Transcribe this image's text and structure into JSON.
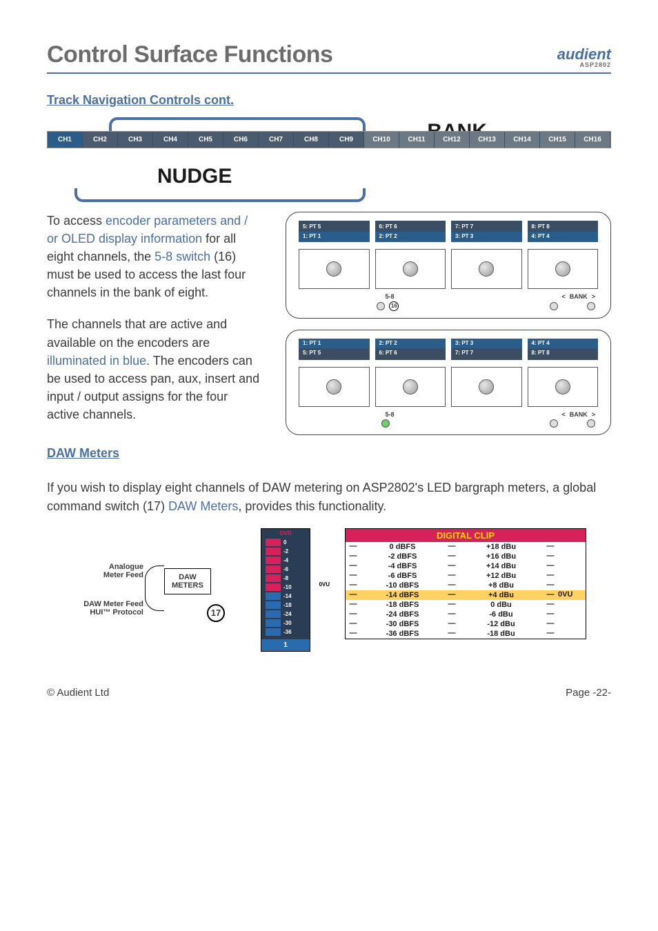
{
  "header": {
    "title": "Control Surface Functions",
    "brand": "audient",
    "model": "ASP2802"
  },
  "section1": "Track Navigation Controls cont.",
  "bank_label": "BANK",
  "nudge_label": "NUDGE",
  "channels": [
    "CH1",
    "CH2",
    "CH3",
    "CH4",
    "CH5",
    "CH6",
    "CH7",
    "CH8",
    "CH9",
    "CH10",
    "CH11",
    "CH12",
    "CH13",
    "CH14",
    "CH15",
    "CH16"
  ],
  "channel_state": {
    "active_bg": "#2b5d8a",
    "bank_bg": "#4a5b70",
    "inactive_bg": "#6c7985",
    "bank1_active_count": 1,
    "bank1_count": 9,
    "colors": [
      "#2b5d8a",
      "#4a5b70",
      "#4a5b70",
      "#4a5b70",
      "#4a5b70",
      "#4a5b70",
      "#4a5b70",
      "#4a5b70",
      "#4a5b70",
      "#6c7985",
      "#6c7985",
      "#6c7985",
      "#6c7985",
      "#6c7985",
      "#6c7985",
      "#6c7985"
    ]
  },
  "para1": {
    "t1": "To access ",
    "l1": "encoder parameters and / or OLED display information",
    "t2": " for all eight channels, the ",
    "l2": "5-8 switch",
    "t3": " (16) must be used to access the last four channels in the bank of eight."
  },
  "para2": {
    "t1": "The channels that are active and available on the encoders are ",
    "l1": "illuminated in blue",
    "t2": ". The encoders can be used to access pan, aux, insert and input / output assigns for the four active channels."
  },
  "panelA": {
    "labels_top": [
      "5: PT 5",
      "6: PT 6",
      "7: PT 7",
      "8: PT 8"
    ],
    "labels_bot": [
      "1: PT 1",
      "2: PT 2",
      "3: PT 3",
      "4: PT 4"
    ],
    "active_row": "bot",
    "btn58": "5-8",
    "num": "16",
    "bank": "BANK",
    "lt": "<",
    "gt": ">"
  },
  "panelB": {
    "labels_top": [
      "1: PT 1",
      "2: PT 2",
      "3: PT 3",
      "4: PT 4"
    ],
    "labels_bot": [
      "5: PT 5",
      "6: PT 6",
      "7: PT 7",
      "8: PT 8"
    ],
    "active_row": "top",
    "btn58": "5-8",
    "bank": "BANK",
    "lt": "<",
    "gt": ">"
  },
  "section2": "DAW Meters",
  "para3": {
    "t1": "If you wish to display eight channels of DAW metering on ASP2802's LED bargraph meters, a global command switch (17) ",
    "l1": "DAW Meters",
    "t2": ", provides this functionality."
  },
  "daw": {
    "box1_line1": "DAW",
    "box1_line2": "METERS",
    "num": "17",
    "label1_a": "Analogue",
    "label1_b": "Meter Feed",
    "label2_a": "DAW Meter Feed",
    "label2_b": "HUI™ Protocol"
  },
  "bargraph": {
    "ovr": "OVR",
    "ovu": "0VU",
    "bg": "#2a3d55",
    "rows": [
      {
        "c": "#d6225a",
        "v": "0"
      },
      {
        "c": "#d6225a",
        "v": "-2"
      },
      {
        "c": "#d6225a",
        "v": "-4"
      },
      {
        "c": "#d6225a",
        "v": "-6"
      },
      {
        "c": "#d6225a",
        "v": "-8"
      },
      {
        "c": "#d6225a",
        "v": "-10"
      },
      {
        "c": "#2a6bb0",
        "v": "-14"
      },
      {
        "c": "#2a6bb0",
        "v": "-18"
      },
      {
        "c": "#2a6bb0",
        "v": "-24"
      },
      {
        "c": "#2a6bb0",
        "v": "-30"
      },
      {
        "c": "#2a6bb0",
        "v": "-36"
      }
    ],
    "channel_num": "1"
  },
  "clip": {
    "title": "DIGITAL CLIP",
    "rows": [
      {
        "l": "0 dBFS",
        "r": "+18 dBu"
      },
      {
        "l": "-2 dBFS",
        "r": "+16 dBu"
      },
      {
        "l": "-4 dBFS",
        "r": "+14 dBu"
      },
      {
        "l": "-6 dBFS",
        "r": "+12 dBu"
      },
      {
        "l": "-10 dBFS",
        "r": "+8 dBu"
      },
      {
        "l": "-14 dBFS",
        "r": "+4 dBu",
        "hl": true,
        "ovu": "0VU"
      },
      {
        "l": "-18 dBFS",
        "r": "0 dBu"
      },
      {
        "l": "-24 dBFS",
        "r": "-6 dBu"
      },
      {
        "l": "-30 dBFS",
        "r": "-12 dBu"
      },
      {
        "l": "-36 dBFS",
        "r": "-18 dBu"
      }
    ]
  },
  "footer": {
    "left": "© Audient Ltd",
    "right": "Page -22-"
  }
}
